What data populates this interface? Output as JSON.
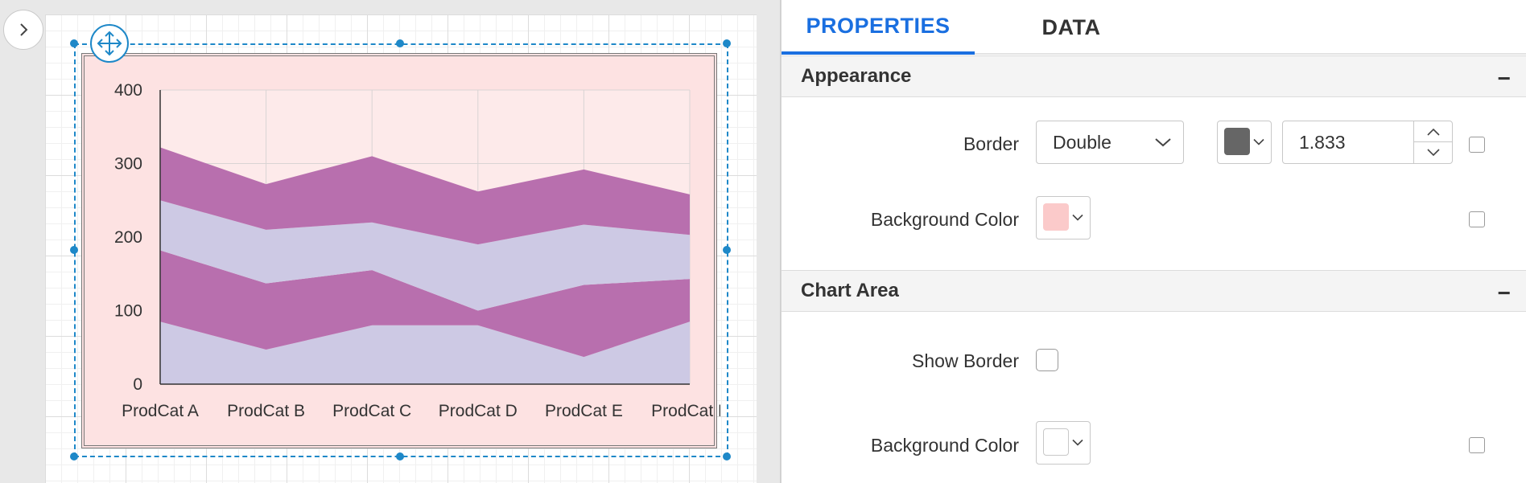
{
  "panel": {
    "tabs": [
      {
        "label": "PROPERTIES"
      },
      {
        "label": "DATA"
      }
    ],
    "appearance": {
      "header": "Appearance",
      "collapse_glyph": "−",
      "border": {
        "label": "Border",
        "style_value": "Double",
        "color": "#666666",
        "width_value": "1.833"
      },
      "background": {
        "label": "Background Color",
        "color": "#fbcaca"
      }
    },
    "chart_area": {
      "header": "Chart Area",
      "collapse_glyph": "−",
      "show_border": {
        "label": "Show Border"
      },
      "background": {
        "label": "Background Color",
        "color": "#ffffff"
      }
    }
  },
  "icons": {
    "toggle": "chevron-right-icon",
    "move": "move-arrows-icon",
    "dropdown": "chevron-down-icon",
    "spin_up": "chevron-up-icon",
    "spin_down": "chevron-down-icon"
  },
  "colors": {
    "accent": "#1a6fe0",
    "selection": "#1e88c8",
    "chart_background": "#fde2e2",
    "series_purple": "#b86fae",
    "series_lavender": "#cdc9e4"
  },
  "chart_data": {
    "type": "area",
    "stacked": true,
    "categories": [
      "ProdCat A",
      "ProdCat B",
      "ProdCat C",
      "ProdCat D",
      "ProdCat E",
      "ProdCat F"
    ],
    "y_ticks": [
      "0",
      "100",
      "200",
      "300",
      "400"
    ],
    "ylim": [
      0,
      400
    ],
    "grid": true,
    "legend": "none",
    "series": [
      {
        "values": [
          85,
          47,
          80,
          80,
          37,
          85
        ],
        "color": "#cdc9e4"
      },
      {
        "values": [
          97,
          90,
          75,
          20,
          98,
          58
        ],
        "color": "#b86fae"
      },
      {
        "values": [
          68,
          73,
          65,
          90,
          82,
          60
        ],
        "color": "#cdc9e4"
      },
      {
        "values": [
          72,
          62,
          90,
          72,
          75,
          55
        ],
        "color": "#b86fae"
      }
    ]
  }
}
